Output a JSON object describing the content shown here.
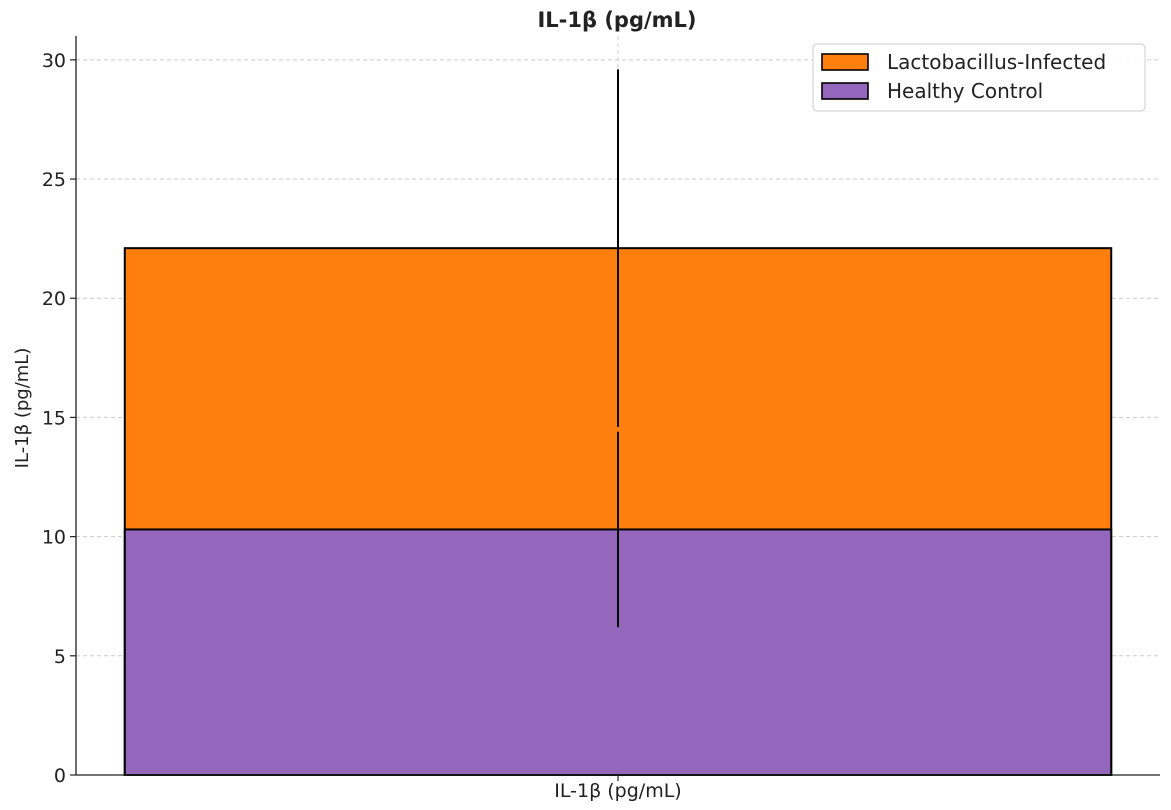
{
  "chart_data": {
    "type": "bar",
    "stacked": true,
    "title": "IL-1β (pg/mL)",
    "xlabel": "",
    "ylabel": "IL-1β (pg/mL)",
    "categories": [
      "IL-1β (pg/mL)"
    ],
    "ylim": [
      0,
      31
    ],
    "yticks": [
      0,
      5,
      10,
      15,
      20,
      25,
      30
    ],
    "grid": true,
    "legend_position": "top-right",
    "series": [
      {
        "name": "Lactobacillus-Infected",
        "values": [
          22.1
        ],
        "error": [
          7.5
        ],
        "color": "#ff7f0e"
      },
      {
        "name": "Healthy Control",
        "values": [
          10.3
        ],
        "error": [
          4.1
        ],
        "color": "#9467bd"
      }
    ]
  }
}
